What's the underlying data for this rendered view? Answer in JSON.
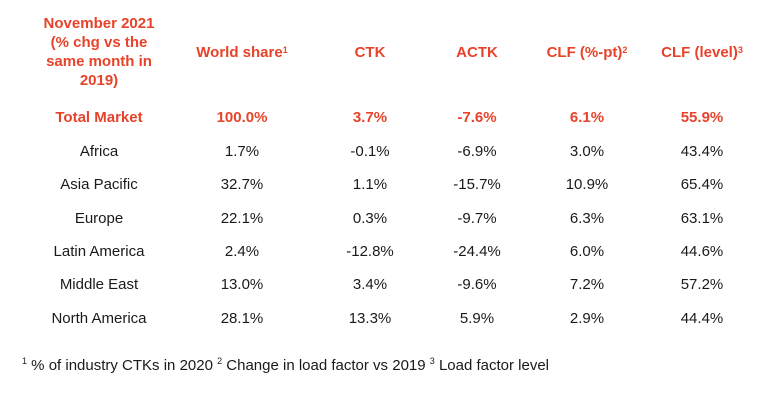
{
  "header": {
    "corner": [
      "November 2021",
      "(% chg vs the",
      "same month in",
      "2019)"
    ],
    "columns": [
      {
        "label": "World share",
        "sup": "1"
      },
      {
        "label": "CTK",
        "sup": ""
      },
      {
        "label": "ACTK",
        "sup": ""
      },
      {
        "label": "CLF (%-pt)",
        "sup": "2"
      },
      {
        "label": "CLF (level)",
        "sup": "3"
      }
    ]
  },
  "rows": [
    {
      "region": "Total Market",
      "values": [
        "100.0%",
        "3.7%",
        "-7.6%",
        "6.1%",
        "55.9%"
      ]
    },
    {
      "region": "Africa",
      "values": [
        "1.7%",
        "-0.1%",
        "-6.9%",
        "3.0%",
        "43.4%"
      ]
    },
    {
      "region": "Asia Pacific",
      "values": [
        "32.7%",
        "1.1%",
        "-15.7%",
        "10.9%",
        "65.4%"
      ]
    },
    {
      "region": "Europe",
      "values": [
        "22.1%",
        "0.3%",
        "-9.7%",
        "6.3%",
        "63.1%"
      ]
    },
    {
      "region": "Latin America",
      "values": [
        "2.4%",
        "-12.8%",
        "-24.4%",
        "6.0%",
        "44.6%"
      ]
    },
    {
      "region": "Middle East",
      "values": [
        "13.0%",
        "3.4%",
        "-9.6%",
        "7.2%",
        "57.2%"
      ]
    },
    {
      "region": "North America",
      "values": [
        "28.1%",
        "13.3%",
        "5.9%",
        "2.9%",
        "44.4%"
      ]
    }
  ],
  "footnotes": [
    {
      "sup": "1",
      "text": " % of industry CTKs in 2020 "
    },
    {
      "sup": "2",
      "text": " Change in load factor vs 2019 "
    },
    {
      "sup": "3",
      "text": " Load factor level"
    }
  ],
  "colors": {
    "accent": "#e8432a",
    "text": "#1a1a1a"
  }
}
